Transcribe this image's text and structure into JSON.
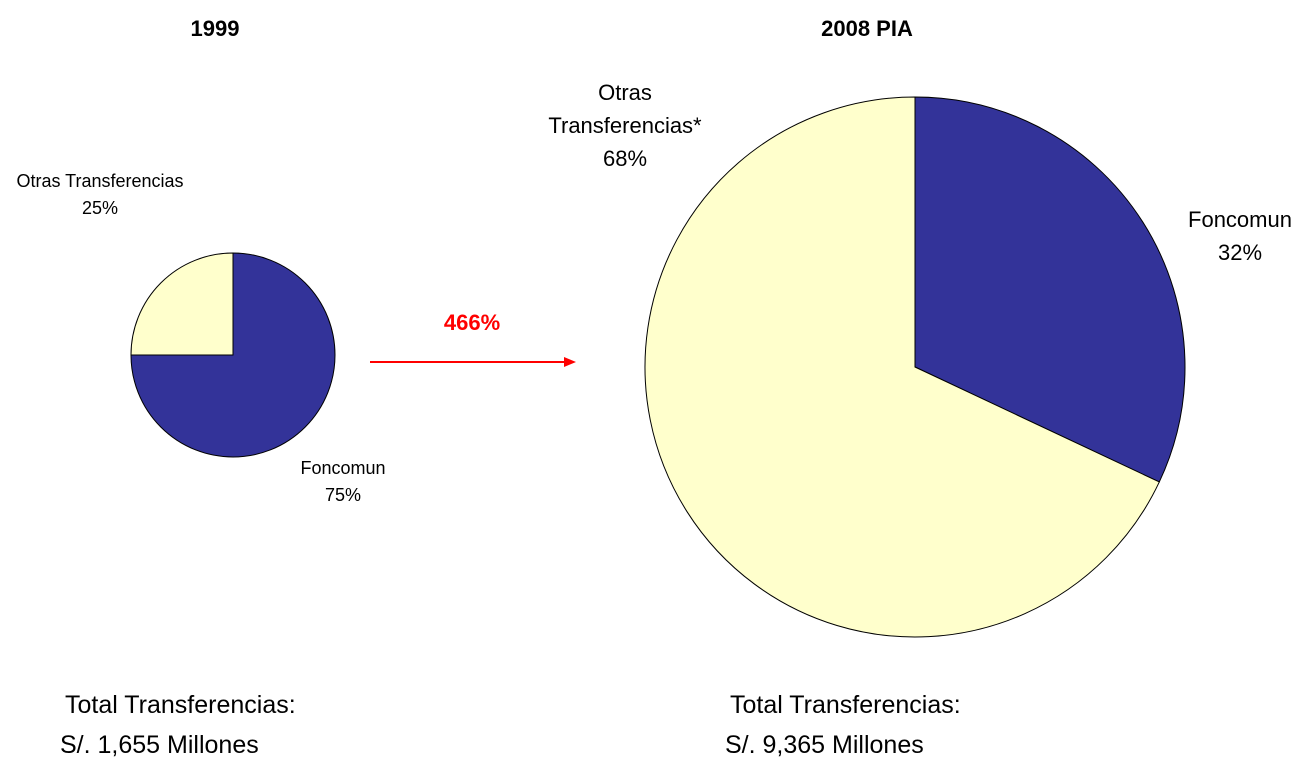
{
  "chart_data": [
    {
      "type": "pie",
      "title": "1999",
      "categories": [
        "Foncomun",
        "Otras Transferencias"
      ],
      "values": [
        75,
        25
      ],
      "value_labels": [
        "75%",
        "25%"
      ],
      "colors": [
        "#333399",
        "#ffffcc"
      ],
      "total_label": "Total Transferencias:",
      "total": "S/. 1,655 Millones"
    },
    {
      "type": "pie",
      "title": "2008 PIA",
      "categories": [
        "Foncomun",
        "Otras Transferencias*"
      ],
      "values": [
        32,
        68
      ],
      "value_labels": [
        "32%",
        "68%"
      ],
      "colors": [
        "#333399",
        "#ffffcc"
      ],
      "total_label": "Total Transferencias:",
      "total": "S/. 9,365 Millones"
    }
  ],
  "annotation": {
    "text": "466%",
    "color": "#ff0000"
  }
}
